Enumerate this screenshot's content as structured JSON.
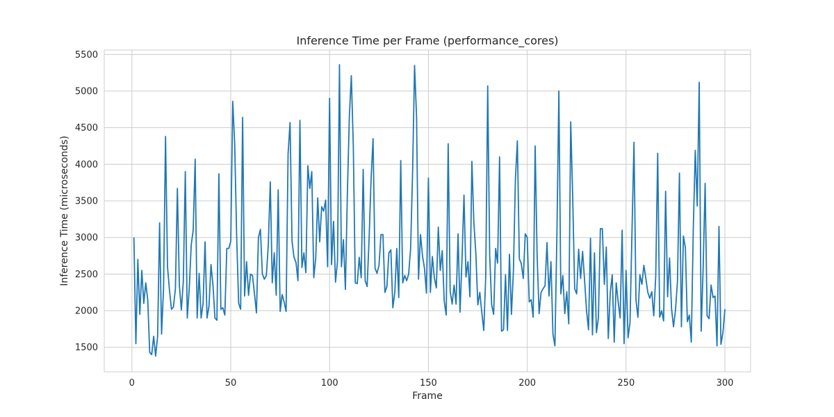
{
  "chart_data": {
    "type": "line",
    "title": "Inference Time per Frame (performance_cores)",
    "xlabel": "Frame",
    "ylabel": "Inference Time (microseconds)",
    "xlim": [
      -14,
      313
    ],
    "ylim": [
      1165,
      5560
    ],
    "x_ticks": [
      0,
      50,
      100,
      150,
      200,
      250,
      300
    ],
    "y_ticks": [
      1500,
      2000,
      2500,
      3000,
      3500,
      4000,
      4500,
      5000,
      5500
    ],
    "grid": true,
    "line_color": "#1f77b4",
    "series": [
      {
        "x_start": 1,
        "x_step": 1,
        "values": [
          3000,
          1550,
          2700,
          1950,
          2550,
          2100,
          2380,
          2150,
          1430,
          1400,
          1650,
          1380,
          1650,
          3200,
          1680,
          2300,
          4380,
          2600,
          2280,
          2020,
          2050,
          2300,
          3670,
          2350,
          2010,
          2400,
          3900,
          1900,
          2300,
          2900,
          3100,
          4070,
          1900,
          2510,
          1900,
          2100,
          2940,
          1900,
          2060,
          2630,
          2350,
          1900,
          1870,
          3870,
          2020,
          2040,
          1940,
          2850,
          2850,
          2950,
          4860,
          4270,
          3010,
          2100,
          2020,
          4640,
          2200,
          2670,
          2210,
          2500,
          2480,
          2230,
          1970,
          3000,
          3110,
          2500,
          2430,
          2480,
          2900,
          3760,
          2380,
          2790,
          2210,
          3650,
          1990,
          2220,
          2120,
          1990,
          4140,
          4570,
          2950,
          2730,
          2660,
          2410,
          4600,
          2590,
          2790,
          2520,
          3980,
          3670,
          3900,
          2450,
          2720,
          3540,
          2940,
          3420,
          3360,
          3510,
          2600,
          4900,
          2630,
          3220,
          2390,
          2670,
          5360,
          2600,
          2970,
          2290,
          3600,
          4650,
          5210,
          4250,
          2380,
          2370,
          2730,
          2450,
          3930,
          2410,
          2330,
          2990,
          3800,
          4350,
          2580,
          2510,
          2620,
          3040,
          3040,
          2250,
          2330,
          2790,
          2830,
          2040,
          2250,
          2850,
          2180,
          4050,
          2380,
          2480,
          2410,
          2500,
          2850,
          3900,
          5350,
          4650,
          2430,
          3040,
          2750,
          2580,
          2240,
          3810,
          2250,
          2740,
          2450,
          2310,
          3140,
          2550,
          2820,
          2130,
          1940,
          4280,
          2270,
          2090,
          2350,
          2090,
          3050,
          1980,
          2710,
          3580,
          2460,
          2670,
          2190,
          4040,
          3200,
          2780,
          2080,
          2250,
          1980,
          1730,
          2470,
          5070,
          2760,
          2080,
          1950,
          2850,
          2650,
          4100,
          1720,
          1740,
          2490,
          1730,
          2770,
          1950,
          2540,
          3790,
          4320,
          2710,
          2640,
          2440,
          3050,
          3000,
          2120,
          2150,
          1910,
          4250,
          2750,
          1960,
          2250,
          2300,
          2340,
          2930,
          2200,
          2670,
          1680,
          1520,
          3030,
          5000,
          2230,
          2480,
          1960,
          2260,
          1820,
          4580,
          3550,
          2300,
          2230,
          2840,
          2440,
          2810,
          2420,
          2000,
          1740,
          2990,
          1670,
          2790,
          1700,
          1900,
          3120,
          3120,
          2360,
          2870,
          1620,
          2250,
          2490,
          1570,
          2380,
          2120,
          1900,
          3100,
          1550,
          2550,
          1630,
          1840,
          3090,
          4300,
          2150,
          1910,
          2490,
          2360,
          2620,
          2440,
          2250,
          2170,
          2260,
          1930,
          2470,
          4150,
          1910,
          2000,
          1860,
          3630,
          2190,
          2720,
          2030,
          1780,
          2010,
          2400,
          3880,
          1780,
          3020,
          2860,
          1850,
          1940,
          1570,
          3110,
          4190,
          3430,
          5120,
          1720,
          2590,
          3740,
          1930,
          1890,
          2350,
          2180,
          2200,
          1520,
          3150,
          1540,
          1700,
          2020
        ]
      }
    ]
  }
}
